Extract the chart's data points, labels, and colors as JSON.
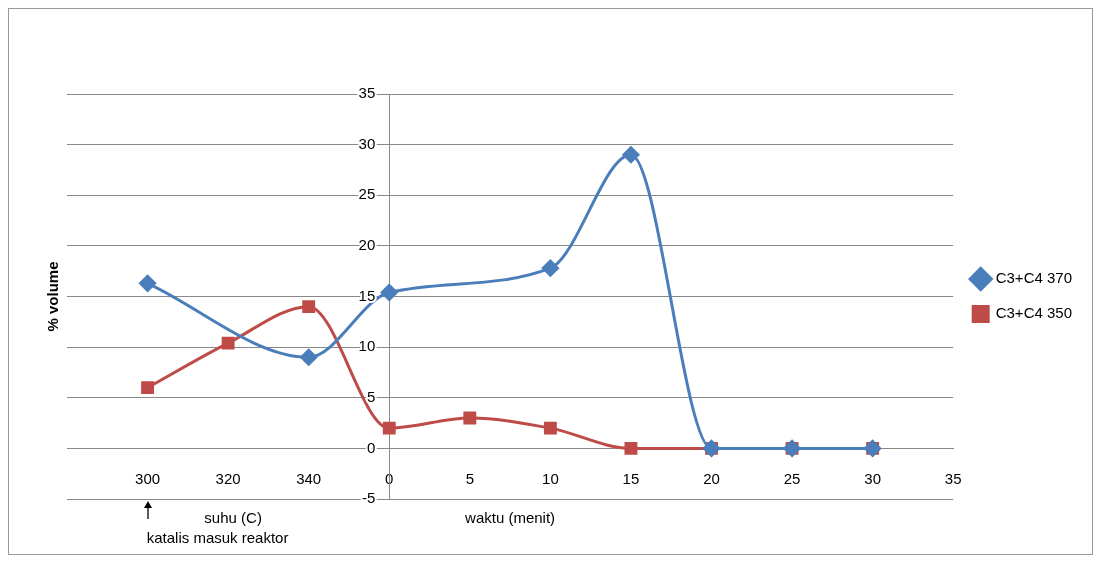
{
  "chart_data": {
    "type": "line",
    "ylabel": "% volume",
    "xlabel": "waktu (menit)",
    "annotations": [
      "suhu (C)",
      "katalis masuk reaktor"
    ],
    "categories": [
      null,
      "300",
      "320",
      "340",
      "0",
      "5",
      "10",
      "15",
      "20",
      "25",
      "30",
      "35"
    ],
    "series": [
      {
        "name": "C3+C4 370",
        "color": "#4a7ebb",
        "marker": "diamond",
        "values": [
          null,
          16.3,
          null,
          9,
          15.4,
          null,
          17.8,
          29,
          0,
          0,
          0,
          null
        ]
      },
      {
        "name": "C3+C4 350",
        "color": "#be4b48",
        "marker": "square",
        "values": [
          null,
          6,
          10.4,
          14,
          2,
          3,
          2,
          0,
          0,
          0,
          0,
          null
        ]
      }
    ],
    "ylim": [
      -5,
      35
    ],
    "yticks": [
      -5,
      0,
      5,
      10,
      15,
      20,
      25,
      30,
      35
    ],
    "grid": "y",
    "legend": "right",
    "line_style": "solid"
  }
}
